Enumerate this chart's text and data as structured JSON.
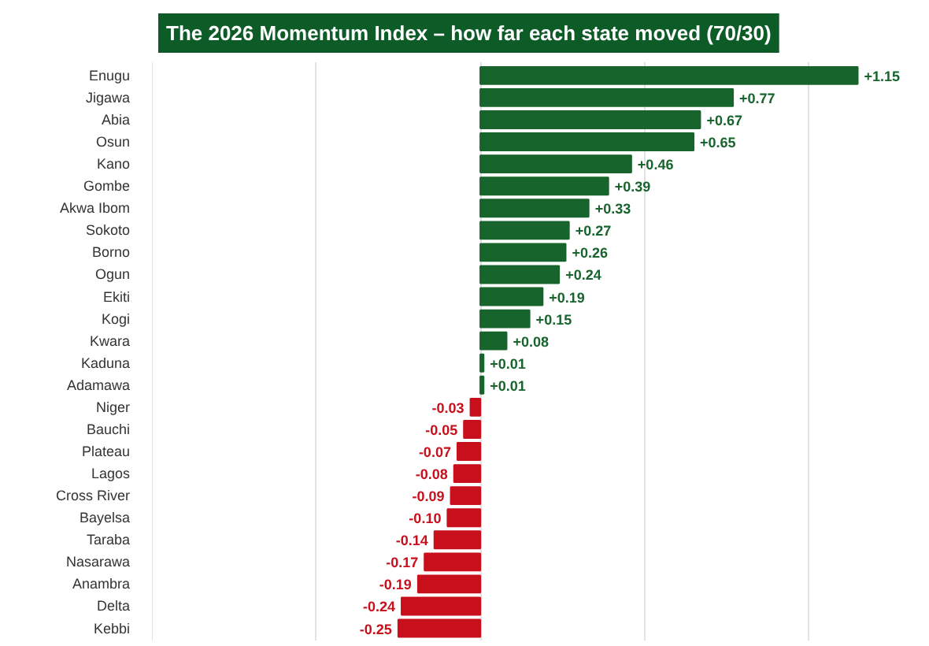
{
  "chart_data": {
    "type": "bar",
    "orientation": "horizontal",
    "title": "The 2026 Momentum Index – how far each state moved (70/30)",
    "categories": [
      "Enugu",
      "Jigawa",
      "Abia",
      "Osun",
      "Kano",
      "Gombe",
      "Akwa Ibom",
      "Sokoto",
      "Borno",
      "Ogun",
      "Ekiti",
      "Kogi",
      "Kwara",
      "Kaduna",
      "Adamawa",
      "Niger",
      "Bauchi",
      "Plateau",
      "Lagos",
      "Cross River",
      "Bayelsa",
      "Taraba",
      "Nasarawa",
      "Anambra",
      "Delta",
      "Kebbi"
    ],
    "values": [
      1.15,
      0.77,
      0.67,
      0.65,
      0.46,
      0.39,
      0.33,
      0.27,
      0.26,
      0.24,
      0.19,
      0.15,
      0.08,
      0.01,
      0.01,
      -0.03,
      -0.05,
      -0.07,
      -0.08,
      -0.09,
      -0.1,
      -0.14,
      -0.17,
      -0.19,
      -0.24,
      -0.25
    ],
    "colors": [
      "#17642d",
      "#17642d",
      "#17642d",
      "#17642d",
      "#17642d",
      "#17642d",
      "#17642d",
      "#17642d",
      "#17642d",
      "#17642d",
      "#17642d",
      "#17642d",
      "#17642d",
      "#17642d",
      "#17642d",
      "#c8101c",
      "#c8101c",
      "#c8101c",
      "#c8101c",
      "#c8101c",
      "#c8101c",
      "#c8101c",
      "#c8101c",
      "#c8101c",
      "#c8101c",
      "#c8101c"
    ],
    "value_labels": [
      "+1.15",
      "+0.77",
      "+0.67",
      "+0.65",
      "+0.46",
      "+0.39",
      "+0.33",
      "+0.27",
      "+0.26",
      "+0.24",
      "+0.19",
      "+0.15",
      "+0.08",
      "+0.01",
      "+0.01",
      "-0.03",
      "-0.05",
      "-0.07",
      "-0.08",
      "-0.09",
      "-0.10",
      "-0.14",
      "-0.17",
      "-0.19",
      "-0.24",
      "-0.25"
    ],
    "grid": "x",
    "tick_labels": "y"
  }
}
